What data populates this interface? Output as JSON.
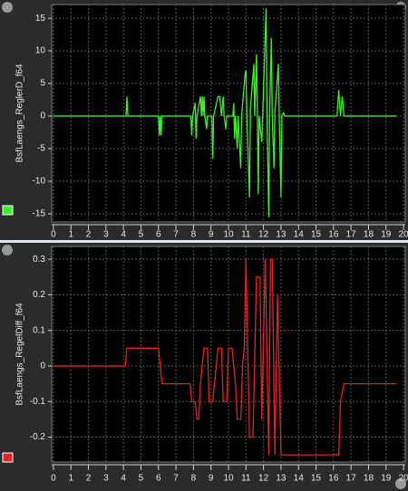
{
  "chart_data": [
    {
      "type": "line",
      "ylabel": "BsfLaengs_ReglerD_f64",
      "color": "#3cf02a",
      "xlim": [
        -0.1,
        20.1
      ],
      "xticks": [
        0,
        1,
        2,
        3,
        4,
        5,
        6,
        7,
        8,
        9,
        10,
        11,
        12,
        13,
        14,
        15,
        16,
        17,
        18,
        19,
        20
      ],
      "ylim": [
        -16.25,
        17.1
      ],
      "yticks": [
        -15,
        -10,
        -5,
        0,
        5,
        10,
        15
      ],
      "grid": true,
      "x": [
        0,
        4.15,
        4.2,
        4.25,
        6.0,
        6.05,
        6.1,
        6.15,
        6.2,
        7.85,
        7.9,
        7.95,
        8.1,
        8.15,
        8.2,
        8.4,
        8.45,
        8.5,
        8.55,
        8.6,
        8.65,
        8.75,
        8.8,
        9.05,
        9.1,
        9.15,
        9.4,
        9.5,
        9.6,
        9.7,
        9.75,
        9.85,
        9.9,
        10.25,
        10.3,
        10.35,
        10.4,
        10.5,
        10.55,
        10.7,
        10.75,
        10.95,
        11.0,
        11.05,
        11.2,
        11.25,
        11.45,
        11.5,
        11.6,
        11.65,
        11.7,
        11.75,
        11.9,
        11.95,
        12.15,
        12.2,
        12.3,
        12.35,
        12.45,
        12.5,
        12.6,
        12.65,
        12.85,
        12.9,
        13.0,
        13.05,
        13.15,
        13.2,
        16.2,
        16.3,
        16.4,
        16.5,
        16.6,
        19.6
      ],
      "values": [
        0,
        0,
        3,
        0,
        0,
        -3,
        0,
        -3,
        0,
        0,
        -3,
        0,
        2,
        -3.5,
        0,
        3,
        0,
        3,
        0,
        3,
        0,
        -2,
        0,
        0,
        -6.5,
        0,
        3,
        3,
        0,
        3,
        0,
        -2,
        0,
        0,
        2,
        -3.5,
        0,
        -5,
        0,
        -8,
        0,
        6.5,
        7,
        0,
        -12.5,
        1,
        8,
        0,
        9.5,
        0,
        -12,
        0,
        -4,
        0,
        16.5,
        0,
        -15.5,
        0,
        12,
        0,
        -8,
        0.5,
        8,
        0,
        -12.5,
        0,
        0.5,
        0,
        0,
        4,
        0,
        3,
        0,
        0
      ]
    },
    {
      "type": "line",
      "ylabel": "BsfLaengs_RegelDiff_f64",
      "color": "#e02424",
      "xlim": [
        -0.1,
        20.1
      ],
      "xticks": [
        0,
        1,
        2,
        3,
        4,
        5,
        6,
        7,
        8,
        9,
        10,
        11,
        12,
        13,
        14,
        15,
        16,
        17,
        18,
        19,
        20
      ],
      "ylim": [
        -0.27,
        0.336
      ],
      "yticks": [
        -0.2,
        -0.1,
        0,
        0.1,
        0.2,
        0.3
      ],
      "grid": true,
      "x": [
        0,
        4.1,
        4.2,
        6.0,
        6.2,
        7.8,
        7.9,
        8.1,
        8.2,
        8.3,
        8.4,
        8.6,
        8.8,
        8.9,
        9.1,
        9.2,
        9.4,
        9.6,
        9.7,
        9.9,
        10.0,
        10.2,
        10.4,
        10.5,
        10.7,
        10.8,
        10.9,
        11.0,
        11.2,
        11.4,
        11.6,
        11.8,
        11.9,
        12.1,
        12.3,
        12.4,
        12.5,
        12.65,
        12.8,
        13.0,
        16.3,
        16.4,
        16.6,
        19.6
      ],
      "values": [
        0,
        0,
        0.05,
        0.05,
        -0.05,
        -0.05,
        -0.1,
        -0.1,
        -0.15,
        -0.15,
        -0.05,
        0.05,
        0.05,
        -0.1,
        -0.1,
        -0.05,
        0.05,
        0.05,
        -0.1,
        -0.1,
        0.05,
        0.05,
        -0.05,
        -0.15,
        -0.15,
        0,
        0.05,
        0.3,
        -0.2,
        -0.2,
        0.25,
        0.25,
        -0.15,
        0.3,
        -0.25,
        0.3,
        0.3,
        -0.25,
        0.2,
        -0.25,
        -0.25,
        -0.1,
        -0.05,
        -0.05
      ]
    }
  ]
}
